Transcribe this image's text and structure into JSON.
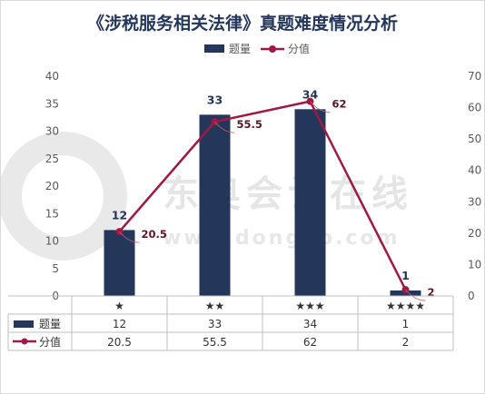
{
  "title": "《涉税服务相关法律》真题难度情况分析",
  "watermark": {
    "brand": "东奥会计在线",
    "url": "www.dongao.com"
  },
  "legend": {
    "bar": "题量",
    "line": "分值"
  },
  "chart_data": {
    "type": "bar",
    "categories": [
      "★",
      "★★",
      "★★★",
      "★★★★"
    ],
    "series": [
      {
        "name": "题量",
        "type": "bar",
        "axis": "left",
        "values": [
          12,
          33,
          34,
          1
        ],
        "color": "#24375a"
      },
      {
        "name": "分值",
        "type": "line",
        "axis": "right",
        "values": [
          20.5,
          55.5,
          62,
          2
        ],
        "color": "#9e1a44"
      }
    ],
    "y_left": {
      "min": 0,
      "max": 40,
      "ticks": [
        0,
        5,
        10,
        15,
        20,
        25,
        30,
        35,
        40
      ]
    },
    "y_right": {
      "min": 0,
      "max": 70,
      "ticks": [
        0,
        10,
        20,
        30,
        40,
        50,
        60,
        70
      ]
    },
    "legend_position": "top-center",
    "grid": false,
    "data_table": true
  }
}
